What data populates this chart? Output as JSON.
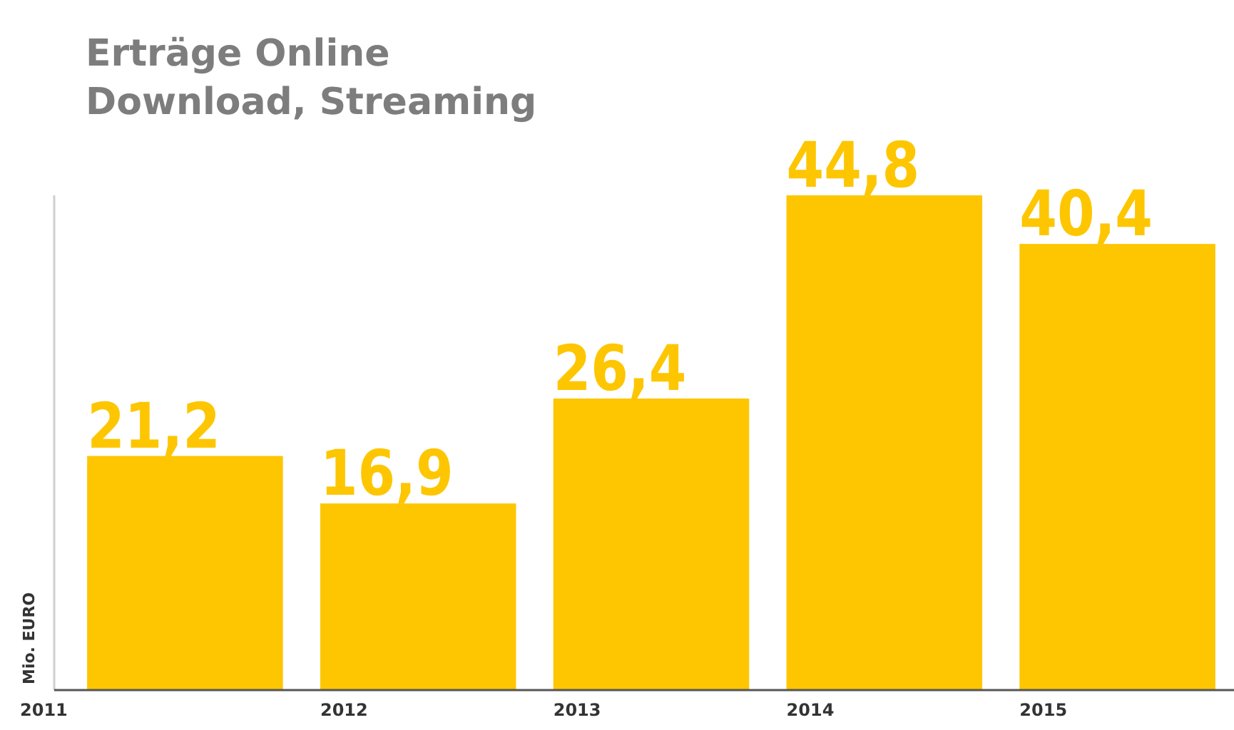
{
  "chart_data": {
    "type": "bar",
    "title": "Erträge Online",
    "subtitle": "Download, Streaming",
    "ylabel": "Mio. EURO",
    "categories": [
      "2011",
      "2012",
      "2013",
      "2014",
      "2015"
    ],
    "values": [
      21.2,
      16.9,
      26.4,
      44.8,
      40.4
    ],
    "value_labels": [
      "21,2",
      "16,9",
      "26,4",
      "44,8",
      "40,4"
    ],
    "color": "#fdc600"
  }
}
